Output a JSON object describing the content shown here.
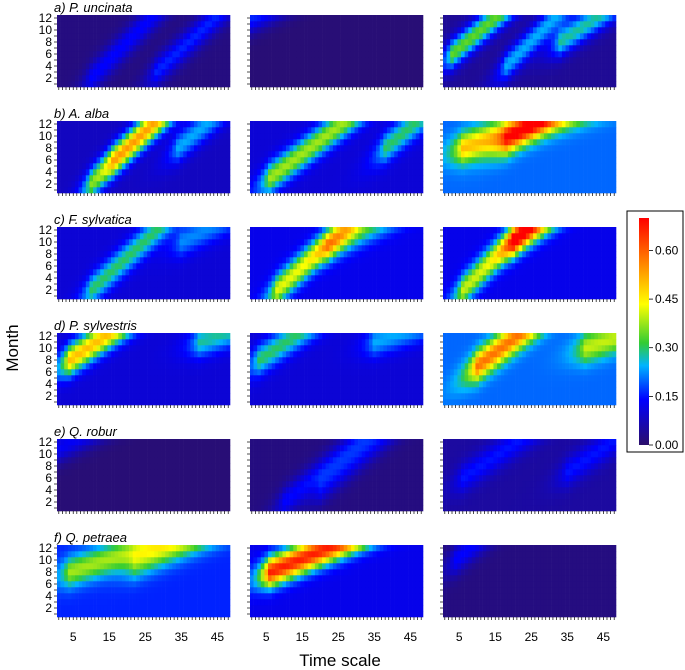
{
  "chart_data": {
    "type": "heatmap",
    "xlabel": "Time scale",
    "ylabel": "Month",
    "x_ticks": [
      5,
      15,
      25,
      35,
      45
    ],
    "y_ticks": [
      2,
      4,
      6,
      8,
      10,
      12
    ],
    "xlim": [
      1,
      48
    ],
    "ylim": [
      1,
      12
    ],
    "colorbar": {
      "ticks": [
        "0.00",
        "0.15",
        "0.30",
        "0.45",
        "0.60"
      ],
      "range": [
        0.0,
        0.7
      ],
      "colors": [
        "#2b0f6b",
        "#0000ff",
        "#00b4ff",
        "#33cc33",
        "#ffff00",
        "#ff7700",
        "#ff0000"
      ]
    },
    "species": [
      {
        "label": "a) P. uncinata",
        "panels": [
          {
            "base": 0.02,
            "ridges": [
              {
                "m": 2,
                "ts": 10,
                "slope": 0.6,
                "amp": 0.12
              },
              {
                "m": 3,
                "ts": 28,
                "slope": 0.55,
                "amp": 0.14
              }
            ]
          },
          {
            "base": 0.01,
            "ridges": [
              {
                "m": 12,
                "ts": 1,
                "slope": 0.3,
                "amp": 0.15
              }
            ]
          },
          {
            "base": 0.04,
            "ridges": [
              {
                "m": 6,
                "ts": 3,
                "slope": 0.5,
                "amp": 0.3
              },
              {
                "m": 4,
                "ts": 18,
                "slope": 0.6,
                "amp": 0.2
              },
              {
                "m": 8,
                "ts": 33,
                "slope": 0.4,
                "amp": 0.24
              }
            ]
          }
        ]
      },
      {
        "label": "b) A. alba",
        "panels": [
          {
            "base": 0.08,
            "ridges": [
              {
                "m": 2,
                "ts": 10,
                "slope": 0.6,
                "amp": 0.26
              },
              {
                "m": 6,
                "ts": 16,
                "slope": 0.5,
                "amp": 0.2
              },
              {
                "m": 8,
                "ts": 34,
                "slope": 0.5,
                "amp": 0.16
              }
            ]
          },
          {
            "base": 0.1,
            "ridges": [
              {
                "m": 3,
                "ts": 6,
                "slope": 0.45,
                "amp": 0.28
              },
              {
                "m": 8,
                "ts": 38,
                "slope": 0.5,
                "amp": 0.2
              }
            ]
          },
          {
            "base": 0.2,
            "ridges": [
              {
                "m": 8,
                "ts": 6,
                "slope": 0.2,
                "amp": 0.3
              },
              {
                "m": 9,
                "ts": 18,
                "slope": 0.4,
                "amp": 0.25
              }
            ]
          }
        ]
      },
      {
        "label": "c) F. sylvatica",
        "panels": [
          {
            "base": 0.1,
            "ridges": [
              {
                "m": 2,
                "ts": 10,
                "slope": 0.55,
                "amp": 0.2
              },
              {
                "m": 10,
                "ts": 35,
                "slope": 0.3,
                "amp": 0.12
              }
            ]
          },
          {
            "base": 0.12,
            "ridges": [
              {
                "m": 2,
                "ts": 8,
                "slope": 0.55,
                "amp": 0.3
              },
              {
                "m": 9,
                "ts": 22,
                "slope": 0.3,
                "amp": 0.18
              }
            ]
          },
          {
            "base": 0.12,
            "ridges": [
              {
                "m": 2,
                "ts": 6,
                "slope": 0.6,
                "amp": 0.28
              },
              {
                "m": 10,
                "ts": 20,
                "slope": 0.4,
                "amp": 0.38
              }
            ]
          }
        ]
      },
      {
        "label": "d) P. sylvestris",
        "panels": [
          {
            "base": 0.1,
            "ridges": [
              {
                "m": 8,
                "ts": 4,
                "slope": 0.4,
                "amp": 0.4
              },
              {
                "m": 11,
                "ts": 40,
                "slope": 0.2,
                "amp": 0.18
              }
            ]
          },
          {
            "base": 0.1,
            "ridges": [
              {
                "m": 8,
                "ts": 3,
                "slope": 0.4,
                "amp": 0.2
              },
              {
                "m": 11,
                "ts": 35,
                "slope": 0.2,
                "amp": 0.14
              }
            ]
          },
          {
            "base": 0.2,
            "ridges": [
              {
                "m": 7,
                "ts": 10,
                "slope": 0.45,
                "amp": 0.38
              },
              {
                "m": 10,
                "ts": 40,
                "slope": 0.2,
                "amp": 0.2
              }
            ]
          }
        ]
      },
      {
        "label": "e) Q. robur",
        "panels": [
          {
            "base": 0.01,
            "ridges": [
              {
                "m": 11,
                "ts": 1,
                "slope": 0.3,
                "amp": 0.12
              }
            ]
          },
          {
            "base": 0.02,
            "ridges": [
              {
                "m": 2,
                "ts": 10,
                "slope": 0.5,
                "amp": 0.12
              },
              {
                "m": 4,
                "ts": 20,
                "slope": 0.5,
                "amp": 0.1
              }
            ]
          },
          {
            "base": 0.05,
            "ridges": [
              {
                "m": 6,
                "ts": 6,
                "slope": 0.4,
                "amp": 0.1
              },
              {
                "m": 7,
                "ts": 35,
                "slope": 0.4,
                "amp": 0.1
              }
            ]
          }
        ]
      },
      {
        "label": "f) Q. petraea",
        "panels": [
          {
            "base": 0.16,
            "ridges": [
              {
                "m": 8,
                "ts": 4,
                "slope": 0.2,
                "amp": 0.22
              },
              {
                "m": 9,
                "ts": 22,
                "slope": 0.25,
                "amp": 0.14
              }
            ]
          },
          {
            "base": 0.12,
            "ridges": [
              {
                "m": 8,
                "ts": 6,
                "slope": 0.25,
                "amp": 0.55
              }
            ]
          },
          {
            "base": 0.02,
            "ridges": [
              {
                "m": 10,
                "ts": 4,
                "slope": 0.5,
                "amp": 0.12
              }
            ]
          }
        ]
      }
    ]
  }
}
